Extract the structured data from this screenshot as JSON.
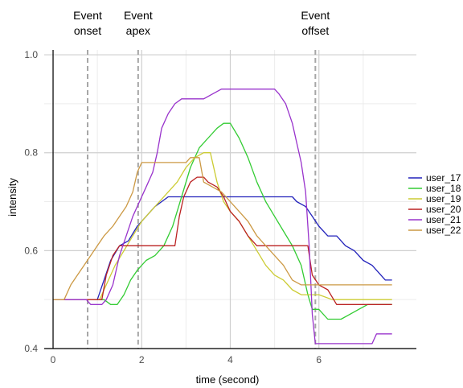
{
  "chart_data": {
    "type": "line",
    "xlabel": "time (second)",
    "ylabel": "intensity",
    "xlim": [
      -0.2,
      8.2
    ],
    "ylim": [
      0.4,
      1.01
    ],
    "x_ticks": [
      0,
      2,
      4,
      6
    ],
    "x_minor_ticks": [
      1,
      3,
      5,
      7
    ],
    "y_ticks": [
      0.4,
      0.6,
      0.8,
      1.0
    ],
    "y_tick_labels": [
      "0.4",
      "0.6",
      "0.8",
      "1.0"
    ],
    "y_minor_ticks": [
      0.5,
      0.7,
      0.9
    ],
    "grid": true,
    "legend_position": "right",
    "events": [
      {
        "label_lines": [
          "Event",
          "onset"
        ],
        "x": 0.78
      },
      {
        "label_lines": [
          "Event",
          "apex"
        ],
        "x": 1.92
      },
      {
        "label_lines": [
          "Event",
          "offset"
        ],
        "x": 5.92
      }
    ],
    "series": [
      {
        "name": "user_17",
        "color": "#2222bb",
        "points": [
          [
            0,
            0.5
          ],
          [
            1.0,
            0.5
          ],
          [
            1.15,
            0.54
          ],
          [
            1.3,
            0.58
          ],
          [
            1.5,
            0.61
          ],
          [
            1.7,
            0.62
          ],
          [
            1.9,
            0.65
          ],
          [
            2.1,
            0.67
          ],
          [
            2.3,
            0.69
          ],
          [
            2.45,
            0.7
          ],
          [
            2.6,
            0.71
          ],
          [
            3.0,
            0.71
          ],
          [
            4.0,
            0.71
          ],
          [
            5.0,
            0.71
          ],
          [
            5.4,
            0.71
          ],
          [
            5.5,
            0.7
          ],
          [
            5.7,
            0.69
          ],
          [
            5.85,
            0.67
          ],
          [
            6.0,
            0.65
          ],
          [
            6.2,
            0.63
          ],
          [
            6.4,
            0.63
          ],
          [
            6.6,
            0.61
          ],
          [
            6.8,
            0.6
          ],
          [
            7.0,
            0.58
          ],
          [
            7.2,
            0.57
          ],
          [
            7.4,
            0.55
          ],
          [
            7.5,
            0.54
          ],
          [
            7.65,
            0.54
          ]
        ]
      },
      {
        "name": "user_18",
        "color": "#33cc33",
        "points": [
          [
            0,
            0.5
          ],
          [
            1.15,
            0.5
          ],
          [
            1.3,
            0.49
          ],
          [
            1.45,
            0.49
          ],
          [
            1.6,
            0.51
          ],
          [
            1.75,
            0.54
          ],
          [
            1.9,
            0.56
          ],
          [
            2.1,
            0.58
          ],
          [
            2.3,
            0.59
          ],
          [
            2.5,
            0.61
          ],
          [
            2.7,
            0.65
          ],
          [
            2.9,
            0.71
          ],
          [
            3.1,
            0.77
          ],
          [
            3.3,
            0.81
          ],
          [
            3.5,
            0.83
          ],
          [
            3.7,
            0.85
          ],
          [
            3.85,
            0.86
          ],
          [
            4.0,
            0.86
          ],
          [
            4.2,
            0.83
          ],
          [
            4.4,
            0.79
          ],
          [
            4.6,
            0.74
          ],
          [
            4.8,
            0.7
          ],
          [
            5.0,
            0.67
          ],
          [
            5.2,
            0.64
          ],
          [
            5.4,
            0.61
          ],
          [
            5.6,
            0.57
          ],
          [
            5.75,
            0.51
          ],
          [
            5.85,
            0.48
          ],
          [
            6.0,
            0.48
          ],
          [
            6.2,
            0.46
          ],
          [
            6.5,
            0.46
          ],
          [
            6.7,
            0.47
          ],
          [
            6.9,
            0.48
          ],
          [
            7.1,
            0.49
          ],
          [
            7.65,
            0.49
          ]
        ]
      },
      {
        "name": "user_19",
        "color": "#cccc33",
        "points": [
          [
            0,
            0.5
          ],
          [
            1.05,
            0.5
          ],
          [
            1.2,
            0.53
          ],
          [
            1.4,
            0.57
          ],
          [
            1.6,
            0.6
          ],
          [
            1.8,
            0.63
          ],
          [
            2.0,
            0.66
          ],
          [
            2.2,
            0.68
          ],
          [
            2.4,
            0.7
          ],
          [
            2.6,
            0.72
          ],
          [
            2.8,
            0.74
          ],
          [
            3.0,
            0.77
          ],
          [
            3.2,
            0.79
          ],
          [
            3.4,
            0.8
          ],
          [
            3.55,
            0.8
          ],
          [
            3.7,
            0.74
          ],
          [
            3.85,
            0.7
          ],
          [
            4.0,
            0.68
          ],
          [
            4.2,
            0.66
          ],
          [
            4.4,
            0.63
          ],
          [
            4.6,
            0.6
          ],
          [
            4.8,
            0.57
          ],
          [
            5.0,
            0.55
          ],
          [
            5.2,
            0.54
          ],
          [
            5.4,
            0.52
          ],
          [
            5.6,
            0.51
          ],
          [
            5.8,
            0.51
          ],
          [
            6.0,
            0.51
          ],
          [
            6.3,
            0.5
          ],
          [
            7.65,
            0.5
          ]
        ]
      },
      {
        "name": "user_20",
        "color": "#bb2222",
        "points": [
          [
            0,
            0.5
          ],
          [
            1.1,
            0.5
          ],
          [
            1.2,
            0.55
          ],
          [
            1.35,
            0.59
          ],
          [
            1.5,
            0.61
          ],
          [
            2.0,
            0.61
          ],
          [
            2.5,
            0.61
          ],
          [
            2.75,
            0.61
          ],
          [
            2.85,
            0.67
          ],
          [
            2.95,
            0.71
          ],
          [
            3.1,
            0.74
          ],
          [
            3.25,
            0.75
          ],
          [
            3.4,
            0.75
          ],
          [
            3.5,
            0.74
          ],
          [
            3.7,
            0.73
          ],
          [
            3.85,
            0.71
          ],
          [
            4.0,
            0.68
          ],
          [
            4.2,
            0.66
          ],
          [
            4.4,
            0.63
          ],
          [
            4.6,
            0.61
          ],
          [
            5.0,
            0.61
          ],
          [
            5.5,
            0.61
          ],
          [
            5.75,
            0.61
          ],
          [
            5.85,
            0.55
          ],
          [
            6.0,
            0.53
          ],
          [
            6.2,
            0.52
          ],
          [
            6.4,
            0.49
          ],
          [
            6.8,
            0.49
          ],
          [
            7.0,
            0.49
          ],
          [
            7.65,
            0.49
          ]
        ]
      },
      {
        "name": "user_21",
        "color": "#9933cc",
        "points": [
          [
            0,
            0.5
          ],
          [
            0.75,
            0.5
          ],
          [
            0.85,
            0.49
          ],
          [
            1.1,
            0.49
          ],
          [
            1.2,
            0.5
          ],
          [
            1.35,
            0.53
          ],
          [
            1.5,
            0.59
          ],
          [
            1.65,
            0.63
          ],
          [
            1.8,
            0.67
          ],
          [
            1.95,
            0.7
          ],
          [
            2.1,
            0.73
          ],
          [
            2.25,
            0.76
          ],
          [
            2.35,
            0.8
          ],
          [
            2.45,
            0.85
          ],
          [
            2.6,
            0.88
          ],
          [
            2.75,
            0.9
          ],
          [
            2.9,
            0.91
          ],
          [
            3.1,
            0.91
          ],
          [
            3.4,
            0.91
          ],
          [
            3.6,
            0.92
          ],
          [
            3.8,
            0.93
          ],
          [
            4.2,
            0.93
          ],
          [
            4.6,
            0.93
          ],
          [
            5.0,
            0.93
          ],
          [
            5.1,
            0.92
          ],
          [
            5.25,
            0.9
          ],
          [
            5.4,
            0.86
          ],
          [
            5.5,
            0.82
          ],
          [
            5.6,
            0.78
          ],
          [
            5.7,
            0.72
          ],
          [
            5.78,
            0.61
          ],
          [
            5.85,
            0.47
          ],
          [
            5.92,
            0.41
          ],
          [
            6.2,
            0.41
          ],
          [
            6.8,
            0.41
          ],
          [
            7.2,
            0.41
          ],
          [
            7.3,
            0.43
          ],
          [
            7.65,
            0.43
          ]
        ]
      },
      {
        "name": "user_22",
        "color": "#cc9944",
        "points": [
          [
            0,
            0.5
          ],
          [
            0.25,
            0.5
          ],
          [
            0.4,
            0.53
          ],
          [
            0.55,
            0.55
          ],
          [
            0.7,
            0.57
          ],
          [
            0.85,
            0.59
          ],
          [
            1.0,
            0.61
          ],
          [
            1.15,
            0.63
          ],
          [
            1.35,
            0.65
          ],
          [
            1.5,
            0.67
          ],
          [
            1.65,
            0.69
          ],
          [
            1.8,
            0.72
          ],
          [
            1.9,
            0.76
          ],
          [
            2.0,
            0.78
          ],
          [
            2.2,
            0.78
          ],
          [
            2.5,
            0.78
          ],
          [
            2.8,
            0.78
          ],
          [
            3.0,
            0.78
          ],
          [
            3.1,
            0.79
          ],
          [
            3.3,
            0.79
          ],
          [
            3.4,
            0.74
          ],
          [
            3.6,
            0.73
          ],
          [
            3.8,
            0.72
          ],
          [
            4.0,
            0.7
          ],
          [
            4.2,
            0.68
          ],
          [
            4.4,
            0.66
          ],
          [
            4.6,
            0.63
          ],
          [
            4.8,
            0.61
          ],
          [
            5.0,
            0.59
          ],
          [
            5.2,
            0.57
          ],
          [
            5.4,
            0.54
          ],
          [
            5.6,
            0.53
          ],
          [
            6.0,
            0.53
          ],
          [
            6.5,
            0.53
          ],
          [
            7.65,
            0.53
          ]
        ]
      }
    ]
  }
}
